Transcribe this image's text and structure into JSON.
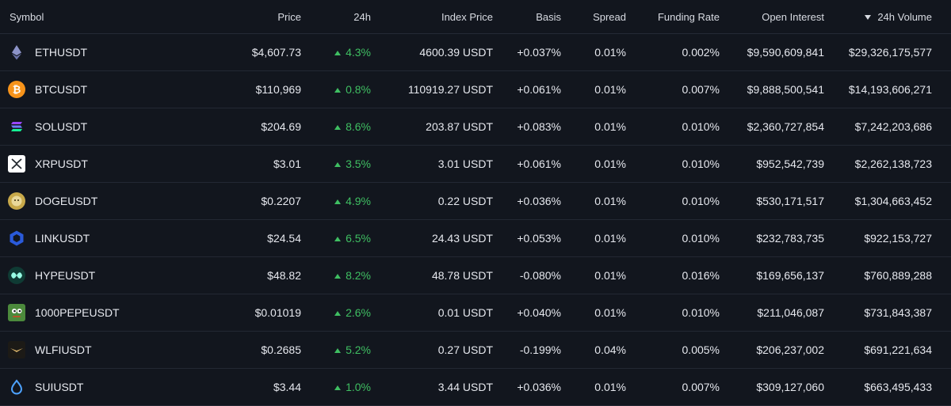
{
  "header": {
    "symbol": "Symbol",
    "price": "Price",
    "change": "24h",
    "index_price": "Index Price",
    "basis": "Basis",
    "spread": "Spread",
    "funding_rate": "Funding Rate",
    "open_interest": "Open Interest",
    "volume": "24h Volume"
  },
  "rows": [
    {
      "symbol": "ETHUSDT",
      "price": "$4,607.73",
      "change": "4.3%",
      "index": "4600.39 USDT",
      "basis": "+0.037%",
      "spread": "0.01%",
      "funding": "0.002%",
      "oi": "$9,590,609,841",
      "volume": "$29,326,175,577",
      "icon": "eth-icon"
    },
    {
      "symbol": "BTCUSDT",
      "price": "$110,969",
      "change": "0.8%",
      "index": "110919.27 USDT",
      "basis": "+0.061%",
      "spread": "0.01%",
      "funding": "0.007%",
      "oi": "$9,888,500,541",
      "volume": "$14,193,606,271",
      "icon": "btc-icon"
    },
    {
      "symbol": "SOLUSDT",
      "price": "$204.69",
      "change": "8.6%",
      "index": "203.87 USDT",
      "basis": "+0.083%",
      "spread": "0.01%",
      "funding": "0.010%",
      "oi": "$2,360,727,854",
      "volume": "$7,242,203,686",
      "icon": "sol-icon"
    },
    {
      "symbol": "XRPUSDT",
      "price": "$3.01",
      "change": "3.5%",
      "index": "3.01 USDT",
      "basis": "+0.061%",
      "spread": "0.01%",
      "funding": "0.010%",
      "oi": "$952,542,739",
      "volume": "$2,262,138,723",
      "icon": "xrp-icon"
    },
    {
      "symbol": "DOGEUSDT",
      "price": "$0.2207",
      "change": "4.9%",
      "index": "0.22 USDT",
      "basis": "+0.036%",
      "spread": "0.01%",
      "funding": "0.010%",
      "oi": "$530,171,517",
      "volume": "$1,304,663,452",
      "icon": "doge-icon"
    },
    {
      "symbol": "LINKUSDT",
      "price": "$24.54",
      "change": "6.5%",
      "index": "24.43 USDT",
      "basis": "+0.053%",
      "spread": "0.01%",
      "funding": "0.010%",
      "oi": "$232,783,735",
      "volume": "$922,153,727",
      "icon": "link-icon"
    },
    {
      "symbol": "HYPEUSDT",
      "price": "$48.82",
      "change": "8.2%",
      "index": "48.78 USDT",
      "basis": "-0.080%",
      "spread": "0.01%",
      "funding": "0.016%",
      "oi": "$169,656,137",
      "volume": "$760,889,288",
      "icon": "hype-icon"
    },
    {
      "symbol": "1000PEPEUSDT",
      "price": "$0.01019",
      "change": "2.6%",
      "index": "0.01 USDT",
      "basis": "+0.040%",
      "spread": "0.01%",
      "funding": "0.010%",
      "oi": "$211,046,087",
      "volume": "$731,843,387",
      "icon": "pepe-icon"
    },
    {
      "symbol": "WLFIUSDT",
      "price": "$0.2685",
      "change": "5.2%",
      "index": "0.27 USDT",
      "basis": "-0.199%",
      "spread": "0.04%",
      "funding": "0.005%",
      "oi": "$206,237,002",
      "volume": "$691,221,634",
      "icon": "wlfi-icon"
    },
    {
      "symbol": "SUIUSDT",
      "price": "$3.44",
      "change": "1.0%",
      "index": "3.44 USDT",
      "basis": "+0.036%",
      "spread": "0.01%",
      "funding": "0.007%",
      "oi": "$309,127,060",
      "volume": "$663,495,433",
      "icon": "sui-icon"
    }
  ],
  "colors": {
    "background": "#12161e",
    "positive": "#3fbf62",
    "divider": "#232833"
  }
}
